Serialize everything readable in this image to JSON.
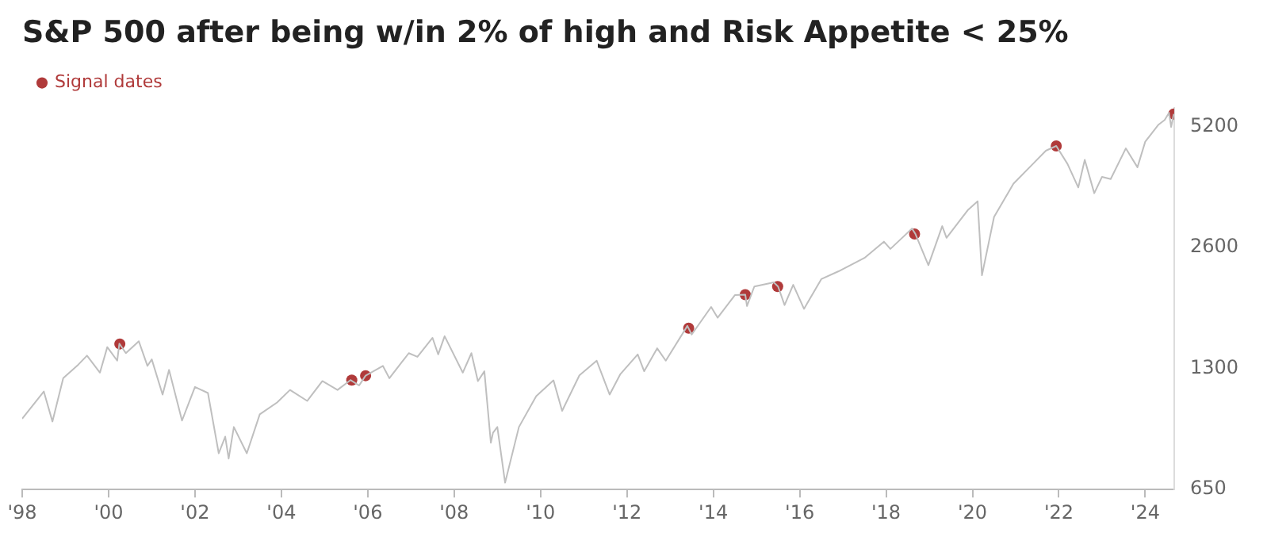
{
  "chart_data": {
    "type": "line",
    "title": "S&P 500 after being w/in 2% of high and Risk Appetite < 25%",
    "log": "y",
    "grid": false,
    "legend": "top left",
    "xlim": [
      1998,
      2024.67
    ],
    "xticks": [
      {
        "value": 1998,
        "label": "'98"
      },
      {
        "value": 2000,
        "label": "'00"
      },
      {
        "value": 2002,
        "label": "'02"
      },
      {
        "value": 2004,
        "label": "'04"
      },
      {
        "value": 2006,
        "label": "'06"
      },
      {
        "value": 2008,
        "label": "'08"
      },
      {
        "value": 2010,
        "label": "'10"
      },
      {
        "value": 2012,
        "label": "'12"
      },
      {
        "value": 2014,
        "label": "'14"
      },
      {
        "value": 2016,
        "label": "'16"
      },
      {
        "value": 2018,
        "label": "'18"
      },
      {
        "value": 2020,
        "label": "'20"
      },
      {
        "value": 2022,
        "label": "'22"
      },
      {
        "value": 2024,
        "label": "'24"
      }
    ],
    "ylim": [
      650,
      5800
    ],
    "yticks": [
      650,
      1300,
      2600,
      5200
    ],
    "series": [
      {
        "type": "line",
        "color": "#bfbfbf",
        "marker": "none",
        "x": [
          1998.0,
          1998.5,
          1998.7,
          1998.95,
          1999.3,
          1999.5,
          1999.8,
          1999.97,
          2000.2,
          2000.25,
          2000.4,
          2000.7,
          2000.9,
          2001.0,
          2001.25,
          2001.4,
          2001.7,
          2002.0,
          2002.3,
          2002.55,
          2002.7,
          2002.78,
          2002.9,
          2003.2,
          2003.5,
          2003.9,
          2004.2,
          2004.6,
          2004.95,
          2005.3,
          2005.6,
          2005.8,
          2005.95,
          2006.35,
          2006.5,
          2006.95,
          2007.15,
          2007.5,
          2007.63,
          2007.78,
          2008.2,
          2008.4,
          2008.55,
          2008.7,
          2008.85,
          2008.9,
          2009.0,
          2009.18,
          2009.5,
          2009.9,
          2010.3,
          2010.5,
          2010.9,
          2011.3,
          2011.6,
          2011.85,
          2012.25,
          2012.4,
          2012.7,
          2012.9,
          2013.4,
          2013.5,
          2013.95,
          2014.1,
          2014.5,
          2014.74,
          2014.78,
          2014.95,
          2015.4,
          2015.5,
          2015.65,
          2015.85,
          2016.1,
          2016.5,
          2016.9,
          2017.5,
          2017.95,
          2018.1,
          2018.6,
          2018.68,
          2018.98,
          2019.3,
          2019.4,
          2019.9,
          2020.12,
          2020.22,
          2020.5,
          2020.95,
          2021.4,
          2021.7,
          2021.94,
          2022.2,
          2022.45,
          2022.6,
          2022.82,
          2023.0,
          2023.2,
          2023.55,
          2023.82,
          2024.0,
          2024.3,
          2024.45,
          2024.55,
          2024.6,
          2024.66
        ],
        "values": [
          975,
          1140,
          960,
          1230,
          1330,
          1400,
          1270,
          1470,
          1360,
          1500,
          1420,
          1520,
          1320,
          1370,
          1120,
          1290,
          965,
          1170,
          1130,
          800,
          880,
          776,
          930,
          800,
          1000,
          1070,
          1150,
          1080,
          1210,
          1150,
          1217,
          1180,
          1248,
          1320,
          1230,
          1420,
          1390,
          1550,
          1410,
          1565,
          1270,
          1420,
          1210,
          1280,
          850,
          900,
          930,
          676,
          930,
          1110,
          1215,
          1020,
          1250,
          1360,
          1120,
          1260,
          1410,
          1280,
          1460,
          1360,
          1660,
          1580,
          1850,
          1740,
          1980,
          1985,
          1860,
          2080,
          2130,
          2080,
          1870,
          2100,
          1830,
          2170,
          2270,
          2450,
          2690,
          2580,
          2900,
          2810,
          2350,
          2940,
          2750,
          3230,
          3390,
          2218,
          3100,
          3750,
          4200,
          4530,
          4655,
          4200,
          3670,
          4300,
          3550,
          3900,
          3850,
          4590,
          4120,
          4770,
          5250,
          5400,
          5630,
          5190,
          5590
        ]
      },
      {
        "type": "scatter",
        "name": "Signal dates",
        "color": "#b03a3a",
        "marker": "circle",
        "x": [
          2000.26,
          2005.63,
          2005.95,
          2013.43,
          2014.74,
          2015.49,
          2018.66,
          2021.94,
          2024.66
        ],
        "values": [
          1497,
          1217,
          1248,
          1639,
          1985,
          2080,
          2810,
          4655,
          5590
        ]
      }
    ]
  }
}
